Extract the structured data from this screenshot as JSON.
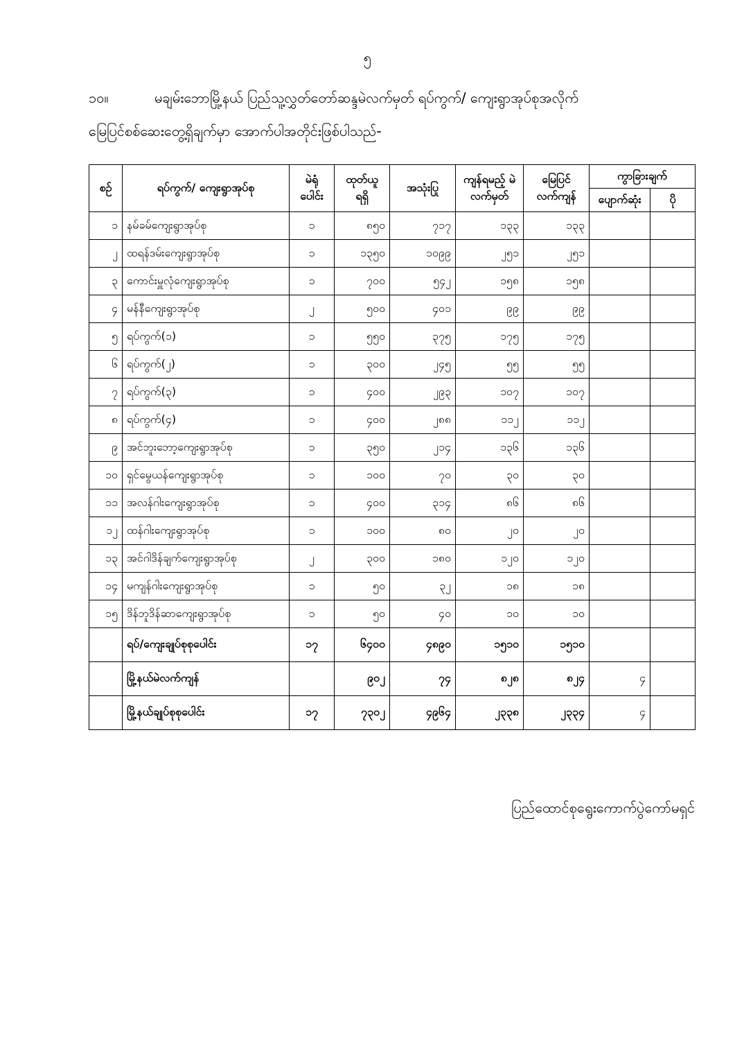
{
  "page_number": "၅",
  "paragraph": {
    "number": "၁၀။",
    "line1": "မချမ်းဘောမြို့နယ် ပြည်သူ့လွှတ်တော်ဆန္ဒမဲလက်မှတ် ရပ်ကွက်/ ကျေးရွာအုပ်စုအလိုက်",
    "line2": "မြေပြင်စစ်ဆေးတွေ့ရှိချက်မှာ အောက်ပါအတိုင်းဖြစ်ပါသည်-"
  },
  "table": {
    "headers": {
      "no": "စဉ်",
      "name": "ရပ်ကွက်/ ကျေးရွာအုပ်စု",
      "booths": "မဲရုံ ပေါင်း",
      "issued": "ထုတ်ယူ ရရှိ",
      "used": "အသုံးပြု",
      "expected": "ကျန်ရမည့် မဲလက်မှတ်",
      "actual": "မြေပြင် လက်ကျန်",
      "diff": "ကွာခြားချက်",
      "missing": "ပျောက်ဆုံး",
      "extra": "ပို"
    },
    "rows": [
      [
        "၁",
        "နမ်ခမ်ကျေးရွာအုပ်စု",
        "၁",
        "၈၅၀",
        "၇၁၇",
        "၁၃၃",
        "၁၃၃",
        "",
        ""
      ],
      [
        "၂",
        "ထရန်ဒမ်းကျေးရွာအုပ်စု",
        "၁",
        "၁၃၅၀",
        "၁၀၉၉",
        "၂၅၁",
        "၂၅၁",
        "",
        ""
      ],
      [
        "၃",
        "ကောင်းမှူလုံကျေးရွာအုပ်စု",
        "၁",
        "၇၀၀",
        "၅၄၂",
        "၁၅၈",
        "၁၅၈",
        "",
        ""
      ],
      [
        "၄",
        "မန်နီကျေးရွာအုပ်စု",
        "၂",
        "၅၀၀",
        "၄၀၁",
        "၉၉",
        "၉၉",
        "",
        ""
      ],
      [
        "၅",
        "ရပ်ကွက်(၁)",
        "၁",
        "၅၅၀",
        "၃၇၅",
        "၁၇၅",
        "၁၇၅",
        "",
        ""
      ],
      [
        "၆",
        "ရပ်ကွက်(၂)",
        "၁",
        "၃၀၀",
        "၂၄၅",
        "၅၅",
        "၅၅",
        "",
        ""
      ],
      [
        "၇",
        "ရပ်ကွက်(၃)",
        "၁",
        "၄၀၀",
        "၂၉၃",
        "၁၀၇",
        "၁၀၇",
        "",
        ""
      ],
      [
        "၈",
        "ရပ်ကွက်(၄)",
        "၁",
        "၄၀၀",
        "၂၈၈",
        "၁၁၂",
        "၁၁၂",
        "",
        ""
      ],
      [
        "၉",
        "အင်ဘူးဘော့ကျေးရွာအုပ်စု",
        "၁",
        "၃၅၀",
        "၂၁၄",
        "၁၃၆",
        "၁၃၆",
        "",
        ""
      ],
      [
        "၁၀",
        "ရှင်မွေယန်ကျေးရွာအုပ်စု",
        "၁",
        "၁၀၀",
        "၇၀",
        "၃၀",
        "၃၀",
        "",
        ""
      ],
      [
        "၁၁",
        "အလန်ဂါးကျေးရွာအုပ်စု",
        "၁",
        "၄၀၀",
        "၃၁၄",
        "၈၆",
        "၈၆",
        "",
        ""
      ],
      [
        "၁၂",
        "ထန်ဂါးကျေးရွာအုပ်စု",
        "၁",
        "၁၀၀",
        "၈၀",
        "၂၀",
        "၂၀",
        "",
        ""
      ],
      [
        "၁၃",
        "အင်ဂါဒိန်ချက်ကျေးရွာအုပ်စု",
        "၂",
        "၃၀၀",
        "၁၈၀",
        "၁၂၀",
        "၁၂၀",
        "",
        ""
      ],
      [
        "၁၄",
        "မကျန်ဂါးကျေးရွာအုပ်စု",
        "၁",
        "၅၀",
        "၃၂",
        "၁၈",
        "၁၈",
        "",
        ""
      ],
      [
        "၁၅",
        "ဒိန်ဘူဒိန်ဆာကျေးရွာအုပ်စု",
        "၁",
        "၅၀",
        "၄၀",
        "၁၀",
        "၁၀",
        "",
        ""
      ]
    ],
    "totals": [
      [
        "",
        "ရပ်/ကျေးချုပ်စုစုပေါင်း",
        "၁၇",
        "၆၄၀၀",
        "၄၈၉၀",
        "၁၅၁၀",
        "၁၅၁၀",
        "",
        ""
      ],
      [
        "",
        "မြို့နယ်မဲလက်ကျန်",
        "",
        "၉၀၂",
        "၇၄",
        "၈၂၈",
        "၈၂၄",
        "၄",
        ""
      ],
      [
        "",
        "မြို့နယ်ချုပ်စုစုပေါင်း",
        "၁၇",
        "၇၃၀၂",
        "၄၉၆၄",
        "၂၃၃၈",
        "၂၃၃၄",
        "၄",
        ""
      ]
    ]
  },
  "footer": "ပြည်ထောင်စုရွေးကောက်ပွဲကော်မရှင်"
}
